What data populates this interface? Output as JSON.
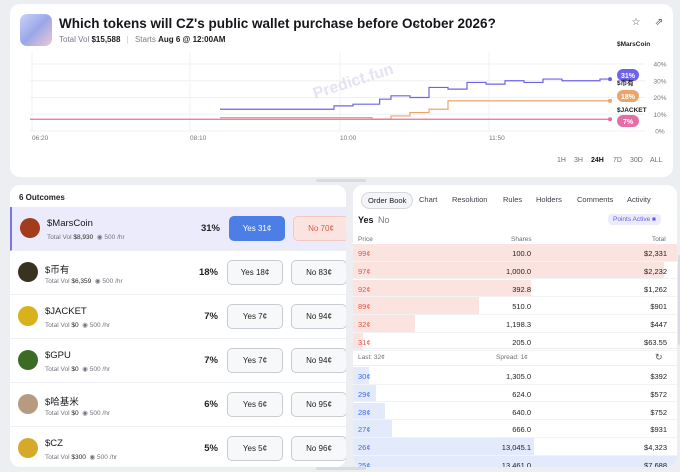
{
  "market": {
    "title": "Which tokens will CZ's public wallet purchase before October 2026?",
    "total_vol_label": "Total Vol",
    "total_vol": "$15,588",
    "starts_label": "Starts",
    "starts": "Aug 6 @ 12:00AM",
    "icons": [
      "chevron-down-icon",
      "star-icon",
      "share-icon"
    ]
  },
  "chart_data": {
    "type": "line",
    "x_ticks": [
      "06:20",
      "08:10",
      "10:00",
      "11:50"
    ],
    "y_ticks": [
      "0%",
      "10%",
      "20%",
      "30%",
      "40%"
    ],
    "ylim": [
      0,
      40
    ],
    "grid": true,
    "watermark": "Predict.fun",
    "series": [
      {
        "name": "$MarsCoin",
        "label": "31%",
        "color": "#6f63e8",
        "x": [
          0,
          0.3,
          0.35,
          0.42,
          0.45,
          0.5,
          0.55,
          0.6,
          0.65,
          0.7,
          0.75,
          0.8,
          0.85,
          0.9,
          1
        ],
        "values": [
          13,
          15,
          16,
          19,
          21,
          20,
          26,
          25,
          29,
          28,
          30,
          29,
          31,
          30,
          31
        ]
      },
      {
        "name": "$币有",
        "label": "18%",
        "color": "#eba56a",
        "x": [
          0,
          0.4,
          0.45,
          0.5,
          0.55,
          0.6,
          1
        ],
        "values": [
          8,
          7,
          9,
          11,
          13,
          18,
          18
        ]
      },
      {
        "name": "$JACKET",
        "label": "7%",
        "color": "#e46fa8",
        "x": [
          0,
          0.3,
          0.45,
          0.6,
          1
        ],
        "values": [
          7,
          7,
          7,
          7,
          7
        ]
      }
    ]
  },
  "timeframes": [
    "1H",
    "3H",
    "24H",
    "7D",
    "30D",
    "ALL"
  ],
  "timeframe_active": "24H",
  "outcomes_header": "6 Outcomes",
  "outcomes": [
    {
      "name": "$MarsCoin",
      "total_vol": "$8,930",
      "rate": "500",
      "pct": "31%",
      "yes": "Yes 31¢",
      "no": "No 70¢",
      "avatar_color": "#a33b1d"
    },
    {
      "name": "$币有",
      "total_vol": "$6,359",
      "rate": "500",
      "pct": "18%",
      "yes": "Yes 18¢",
      "no": "No 83¢",
      "avatar_color": "#3a3220"
    },
    {
      "name": "$JACKET",
      "total_vol": "$0",
      "rate": "500",
      "pct": "7%",
      "yes": "Yes 7¢",
      "no": "No 94¢",
      "avatar_color": "#d9b11c"
    },
    {
      "name": "$GPU",
      "total_vol": "$0",
      "rate": "500",
      "pct": "7%",
      "yes": "Yes 7¢",
      "no": "No 94¢",
      "avatar_color": "#3c6b26"
    },
    {
      "name": "$哈基米",
      "total_vol": "$0",
      "rate": "500",
      "pct": "6%",
      "yes": "Yes 6¢",
      "no": "No 95¢",
      "avatar_color": "#b89a80"
    },
    {
      "name": "$CZ",
      "total_vol": "$300",
      "rate": "500",
      "pct": "5%",
      "yes": "Yes 5¢",
      "no": "No 96¢",
      "avatar_color": "#d6a92b"
    }
  ],
  "outcome_labels": {
    "total_vol": "Total Vol",
    "rate_suffix": "/hr"
  },
  "tabs": [
    "Order Book",
    "Chart",
    "Resolution",
    "Rules",
    "Holders",
    "Comments",
    "Activity"
  ],
  "orderbook": {
    "yes": "Yes",
    "no": "No",
    "points": "Points Active",
    "headers": {
      "price": "Price",
      "shares": "Shares",
      "total": "Total"
    },
    "asks": [
      {
        "price": "99¢",
        "shares": "100.0",
        "total": "$2,331",
        "depth": 1.0
      },
      {
        "price": "97¢",
        "shares": "1,000.0",
        "total": "$2,232",
        "depth": 0.96
      },
      {
        "price": "92¢",
        "shares": "392.8",
        "total": "$1,262",
        "depth": 0.55
      },
      {
        "price": "89¢",
        "shares": "510.0",
        "total": "$901",
        "depth": 0.39
      },
      {
        "price": "32¢",
        "shares": "1,198.3",
        "total": "$447",
        "depth": 0.19
      },
      {
        "price": "31¢",
        "shares": "205.0",
        "total": "$63.55",
        "depth": 0.03
      }
    ],
    "last": "Last: 32¢",
    "spread": "Spread: 1¢",
    "bids": [
      {
        "price": "30¢",
        "shares": "1,305.0",
        "total": "$392",
        "depth": 0.05
      },
      {
        "price": "29¢",
        "shares": "624.0",
        "total": "$572",
        "depth": 0.07
      },
      {
        "price": "28¢",
        "shares": "640.0",
        "total": "$752",
        "depth": 0.1
      },
      {
        "price": "27¢",
        "shares": "666.0",
        "total": "$931",
        "depth": 0.12
      },
      {
        "price": "26¢",
        "shares": "13,045.1",
        "total": "$4,323",
        "depth": 0.56
      },
      {
        "price": "25¢",
        "shares": "13,461.0",
        "total": "$7,688",
        "depth": 1.0
      }
    ]
  }
}
